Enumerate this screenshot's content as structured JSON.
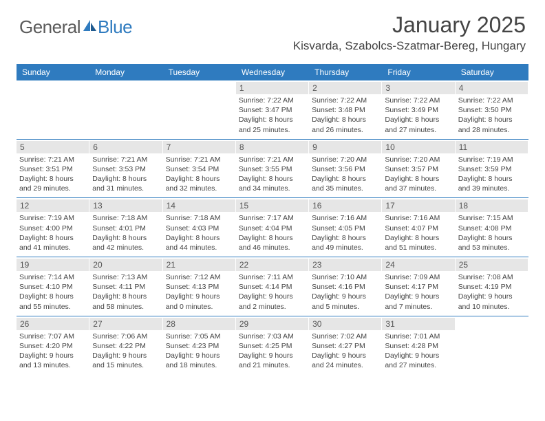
{
  "brand": {
    "part1": "General",
    "part2": "Blue"
  },
  "title": "January 2025",
  "location": "Kisvarda, Szabolcs-Szatmar-Bereg, Hungary",
  "colors": {
    "accent": "#2f7bbf",
    "daynum_bg": "#e6e6e6",
    "text": "#444444"
  },
  "calendar": {
    "type": "table",
    "day_headers": [
      "Sunday",
      "Monday",
      "Tuesday",
      "Wednesday",
      "Thursday",
      "Friday",
      "Saturday"
    ],
    "weeks": [
      [
        {
          "day": "",
          "sunrise": "",
          "sunset": "",
          "daylight": ""
        },
        {
          "day": "",
          "sunrise": "",
          "sunset": "",
          "daylight": ""
        },
        {
          "day": "",
          "sunrise": "",
          "sunset": "",
          "daylight": ""
        },
        {
          "day": "1",
          "sunrise": "Sunrise: 7:22 AM",
          "sunset": "Sunset: 3:47 PM",
          "daylight": "Daylight: 8 hours and 25 minutes."
        },
        {
          "day": "2",
          "sunrise": "Sunrise: 7:22 AM",
          "sunset": "Sunset: 3:48 PM",
          "daylight": "Daylight: 8 hours and 26 minutes."
        },
        {
          "day": "3",
          "sunrise": "Sunrise: 7:22 AM",
          "sunset": "Sunset: 3:49 PM",
          "daylight": "Daylight: 8 hours and 27 minutes."
        },
        {
          "day": "4",
          "sunrise": "Sunrise: 7:22 AM",
          "sunset": "Sunset: 3:50 PM",
          "daylight": "Daylight: 8 hours and 28 minutes."
        }
      ],
      [
        {
          "day": "5",
          "sunrise": "Sunrise: 7:21 AM",
          "sunset": "Sunset: 3:51 PM",
          "daylight": "Daylight: 8 hours and 29 minutes."
        },
        {
          "day": "6",
          "sunrise": "Sunrise: 7:21 AM",
          "sunset": "Sunset: 3:53 PM",
          "daylight": "Daylight: 8 hours and 31 minutes."
        },
        {
          "day": "7",
          "sunrise": "Sunrise: 7:21 AM",
          "sunset": "Sunset: 3:54 PM",
          "daylight": "Daylight: 8 hours and 32 minutes."
        },
        {
          "day": "8",
          "sunrise": "Sunrise: 7:21 AM",
          "sunset": "Sunset: 3:55 PM",
          "daylight": "Daylight: 8 hours and 34 minutes."
        },
        {
          "day": "9",
          "sunrise": "Sunrise: 7:20 AM",
          "sunset": "Sunset: 3:56 PM",
          "daylight": "Daylight: 8 hours and 35 minutes."
        },
        {
          "day": "10",
          "sunrise": "Sunrise: 7:20 AM",
          "sunset": "Sunset: 3:57 PM",
          "daylight": "Daylight: 8 hours and 37 minutes."
        },
        {
          "day": "11",
          "sunrise": "Sunrise: 7:19 AM",
          "sunset": "Sunset: 3:59 PM",
          "daylight": "Daylight: 8 hours and 39 minutes."
        }
      ],
      [
        {
          "day": "12",
          "sunrise": "Sunrise: 7:19 AM",
          "sunset": "Sunset: 4:00 PM",
          "daylight": "Daylight: 8 hours and 41 minutes."
        },
        {
          "day": "13",
          "sunrise": "Sunrise: 7:18 AM",
          "sunset": "Sunset: 4:01 PM",
          "daylight": "Daylight: 8 hours and 42 minutes."
        },
        {
          "day": "14",
          "sunrise": "Sunrise: 7:18 AM",
          "sunset": "Sunset: 4:03 PM",
          "daylight": "Daylight: 8 hours and 44 minutes."
        },
        {
          "day": "15",
          "sunrise": "Sunrise: 7:17 AM",
          "sunset": "Sunset: 4:04 PM",
          "daylight": "Daylight: 8 hours and 46 minutes."
        },
        {
          "day": "16",
          "sunrise": "Sunrise: 7:16 AM",
          "sunset": "Sunset: 4:05 PM",
          "daylight": "Daylight: 8 hours and 49 minutes."
        },
        {
          "day": "17",
          "sunrise": "Sunrise: 7:16 AM",
          "sunset": "Sunset: 4:07 PM",
          "daylight": "Daylight: 8 hours and 51 minutes."
        },
        {
          "day": "18",
          "sunrise": "Sunrise: 7:15 AM",
          "sunset": "Sunset: 4:08 PM",
          "daylight": "Daylight: 8 hours and 53 minutes."
        }
      ],
      [
        {
          "day": "19",
          "sunrise": "Sunrise: 7:14 AM",
          "sunset": "Sunset: 4:10 PM",
          "daylight": "Daylight: 8 hours and 55 minutes."
        },
        {
          "day": "20",
          "sunrise": "Sunrise: 7:13 AM",
          "sunset": "Sunset: 4:11 PM",
          "daylight": "Daylight: 8 hours and 58 minutes."
        },
        {
          "day": "21",
          "sunrise": "Sunrise: 7:12 AM",
          "sunset": "Sunset: 4:13 PM",
          "daylight": "Daylight: 9 hours and 0 minutes."
        },
        {
          "day": "22",
          "sunrise": "Sunrise: 7:11 AM",
          "sunset": "Sunset: 4:14 PM",
          "daylight": "Daylight: 9 hours and 2 minutes."
        },
        {
          "day": "23",
          "sunrise": "Sunrise: 7:10 AM",
          "sunset": "Sunset: 4:16 PM",
          "daylight": "Daylight: 9 hours and 5 minutes."
        },
        {
          "day": "24",
          "sunrise": "Sunrise: 7:09 AM",
          "sunset": "Sunset: 4:17 PM",
          "daylight": "Daylight: 9 hours and 7 minutes."
        },
        {
          "day": "25",
          "sunrise": "Sunrise: 7:08 AM",
          "sunset": "Sunset: 4:19 PM",
          "daylight": "Daylight: 9 hours and 10 minutes."
        }
      ],
      [
        {
          "day": "26",
          "sunrise": "Sunrise: 7:07 AM",
          "sunset": "Sunset: 4:20 PM",
          "daylight": "Daylight: 9 hours and 13 minutes."
        },
        {
          "day": "27",
          "sunrise": "Sunrise: 7:06 AM",
          "sunset": "Sunset: 4:22 PM",
          "daylight": "Daylight: 9 hours and 15 minutes."
        },
        {
          "day": "28",
          "sunrise": "Sunrise: 7:05 AM",
          "sunset": "Sunset: 4:23 PM",
          "daylight": "Daylight: 9 hours and 18 minutes."
        },
        {
          "day": "29",
          "sunrise": "Sunrise: 7:03 AM",
          "sunset": "Sunset: 4:25 PM",
          "daylight": "Daylight: 9 hours and 21 minutes."
        },
        {
          "day": "30",
          "sunrise": "Sunrise: 7:02 AM",
          "sunset": "Sunset: 4:27 PM",
          "daylight": "Daylight: 9 hours and 24 minutes."
        },
        {
          "day": "31",
          "sunrise": "Sunrise: 7:01 AM",
          "sunset": "Sunset: 4:28 PM",
          "daylight": "Daylight: 9 hours and 27 minutes."
        },
        {
          "day": "",
          "sunrise": "",
          "sunset": "",
          "daylight": ""
        }
      ]
    ]
  }
}
